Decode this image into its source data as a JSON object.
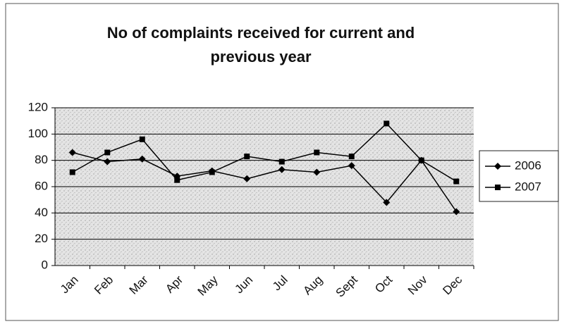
{
  "chart_data": {
    "type": "line",
    "title": "No of complaints received for current and previous year",
    "categories": [
      "Jan",
      "Feb",
      "Mar",
      "Apr",
      "May",
      "Jun",
      "Jul",
      "Aug",
      "Sept",
      "Oct",
      "Nov",
      "Dec"
    ],
    "series": [
      {
        "name": "2006",
        "color": "#000000",
        "marker": "diamond",
        "values": [
          86,
          79,
          81,
          68,
          72,
          66,
          73,
          71,
          76,
          48,
          80,
          41
        ]
      },
      {
        "name": "2007",
        "color": "#000000",
        "marker": "square",
        "values": [
          71,
          86,
          96,
          65,
          71,
          83,
          79,
          86,
          83,
          108,
          80,
          64
        ]
      }
    ],
    "ylim": [
      0,
      120
    ],
    "yticks": [
      0,
      20,
      40,
      60,
      80,
      100,
      120
    ],
    "grid": true,
    "legend": "right"
  }
}
